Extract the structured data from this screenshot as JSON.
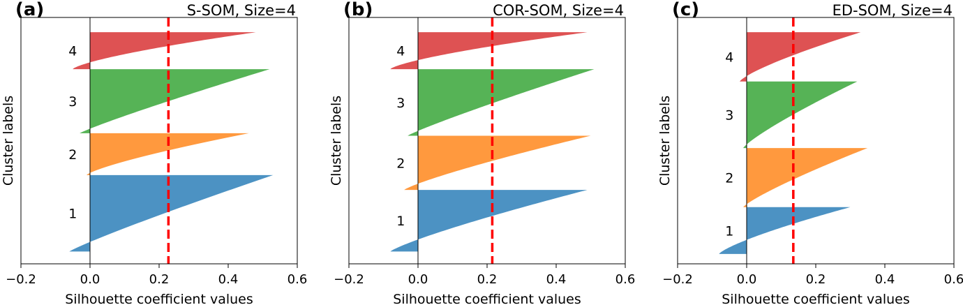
{
  "chart_data": [
    {
      "type": "silhouette",
      "panel": "(a)",
      "title": "S-SOM, Size=4",
      "xlabel": "Silhouette coefficient values",
      "ylabel": "Cluster labels",
      "xlim": [
        -0.2,
        0.6
      ],
      "xticks": [
        -0.2,
        0.0,
        0.2,
        0.4,
        0.6
      ],
      "xtick_labels": [
        "−0.2",
        "0.0",
        "0.2",
        "0.4",
        "0.6"
      ],
      "average_silhouette": 0.227,
      "clusters": [
        {
          "label": "1",
          "color": "#1f77b4",
          "min": -0.06,
          "max": 0.53,
          "shape": 1.1
        },
        {
          "label": "2",
          "color": "#ff7f0e",
          "min": -0.01,
          "max": 0.46,
          "shape": 1.3
        },
        {
          "label": "3",
          "color": "#2ca02c",
          "min": -0.03,
          "max": 0.52,
          "shape": 1.1
        },
        {
          "label": "4",
          "color": "#d62728",
          "min": -0.05,
          "max": 0.48,
          "shape": 1.4
        }
      ]
    },
    {
      "type": "silhouette",
      "panel": "(b)",
      "title": "COR-SOM, Size=4",
      "xlabel": "Silhouette coefficient values",
      "ylabel": "Cluster labels",
      "xlim": [
        -0.2,
        0.6
      ],
      "xticks": [
        -0.2,
        0.0,
        0.2,
        0.4,
        0.6
      ],
      "xtick_labels": [
        "−0.2",
        "0.0",
        "0.2",
        "0.4",
        "0.6"
      ],
      "average_silhouette": 0.215,
      "clusters": [
        {
          "label": "1",
          "color": "#1f77b4",
          "min": -0.08,
          "max": 0.49,
          "shape": 1.2
        },
        {
          "label": "2",
          "color": "#ff7f0e",
          "min": -0.04,
          "max": 0.5,
          "shape": 1.2
        },
        {
          "label": "3",
          "color": "#2ca02c",
          "min": -0.03,
          "max": 0.51,
          "shape": 1.1
        },
        {
          "label": "4",
          "color": "#d62728",
          "min": -0.08,
          "max": 0.49,
          "shape": 1.4
        }
      ]
    },
    {
      "type": "silhouette",
      "panel": "(c)",
      "title": "ED-SOM, Size=4",
      "xlabel": "Silhouette coefficient values",
      "ylabel": "Cluster labels",
      "xlim": [
        -0.2,
        0.6
      ],
      "xticks": [
        -0.2,
        0.0,
        0.2,
        0.4,
        0.6
      ],
      "xtick_labels": [
        "−0.2",
        "0.0",
        "0.2",
        "0.4",
        "0.6"
      ],
      "average_silhouette": 0.135,
      "clusters": [
        {
          "label": "1",
          "color": "#1f77b4",
          "min": -0.08,
          "max": 0.3,
          "shape": 1.3
        },
        {
          "label": "2",
          "color": "#ff7f0e",
          "min": -0.01,
          "max": 0.35,
          "shape": 1.2
        },
        {
          "label": "3",
          "color": "#2ca02c",
          "min": -0.01,
          "max": 0.32,
          "shape": 1.2
        },
        {
          "label": "4",
          "color": "#d62728",
          "min": -0.02,
          "max": 0.33,
          "shape": 1.3
        }
      ]
    }
  ],
  "styles": {
    "average_line_color": "#ff0000",
    "cluster_alpha": 0.8
  }
}
